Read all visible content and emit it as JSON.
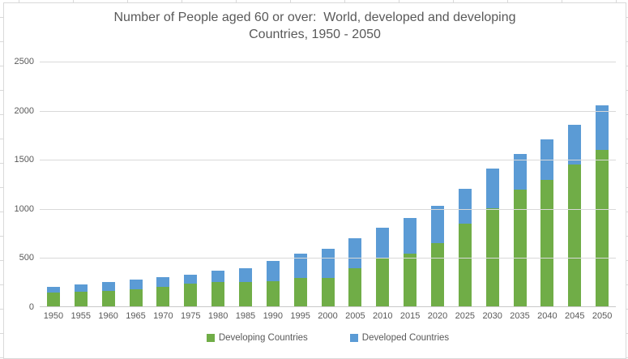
{
  "chart_data": {
    "type": "bar",
    "stacked": true,
    "title_line1": "Number of People aged 60 or over:  World, developed and developing",
    "title_line2": "Countries, 1950 - 2050",
    "categories": [
      "1950",
      "1955",
      "1960",
      "1965",
      "1970",
      "1975",
      "1980",
      "1985",
      "1990",
      "1995",
      "2000",
      "2005",
      "2010",
      "2015",
      "2020",
      "2025",
      "2030",
      "2035",
      "2040",
      "2045",
      "2050"
    ],
    "series": [
      {
        "name": "Developing Countries",
        "color": "#70AD47",
        "values": [
          140,
          150,
          160,
          170,
          195,
          230,
          245,
          250,
          260,
          285,
          290,
          390,
          490,
          535,
          640,
          840,
          1000,
          1190,
          1290,
          1445,
          1590
        ]
      },
      {
        "name": "Developed Countries",
        "color": "#5B9BD5",
        "values": [
          60,
          75,
          90,
          100,
          100,
          95,
          115,
          140,
          205,
          255,
          300,
          305,
          310,
          365,
          380,
          360,
          400,
          360,
          410,
          400,
          460
        ]
      }
    ],
    "totals": [
      200,
      225,
      250,
      270,
      295,
      325,
      360,
      390,
      465,
      540,
      590,
      695,
      800,
      900,
      1020,
      1200,
      1400,
      1550,
      1700,
      1845,
      2050
    ],
    "xlabel": "",
    "ylabel": "",
    "ylim": [
      0,
      2500
    ],
    "yticks": [
      0,
      500,
      1000,
      1500,
      2000,
      2500
    ],
    "grid": true,
    "legend_position": "bottom"
  },
  "colors": {
    "gridline": "#D9D9D9",
    "axis_line": "#C9C9C9",
    "text": "#595959",
    "background": "#FFFFFF",
    "frame_border": "#D9D9D9"
  }
}
